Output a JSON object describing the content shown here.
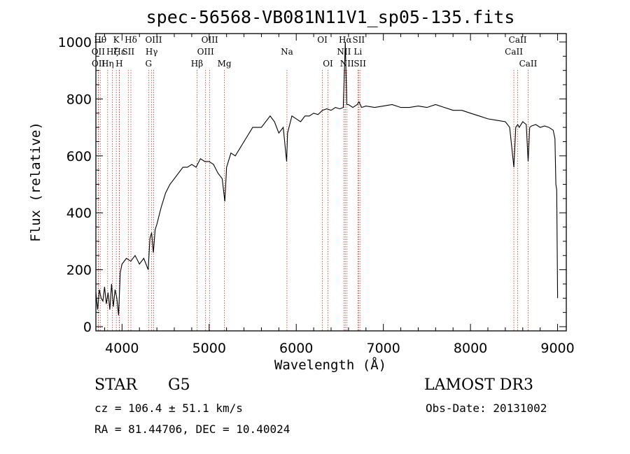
{
  "chart_data": {
    "type": "line",
    "title": "spec-56568-VB081N11V1_sp05-135.fits",
    "xlabel": "Wavelength (Å)",
    "ylabel": "Flux (relative)",
    "xlim": [
      3700,
      9100
    ],
    "ylim": [
      0,
      1000
    ],
    "xticks": [
      4000,
      5000,
      6000,
      7000,
      8000,
      9000
    ],
    "yticks": [
      0,
      200,
      400,
      600,
      800,
      1000
    ],
    "spectrum": {
      "x": [
        3700,
        3720,
        3740,
        3760,
        3780,
        3800,
        3820,
        3840,
        3860,
        3880,
        3900,
        3920,
        3940,
        3960,
        3980,
        4000,
        4050,
        4100,
        4150,
        4200,
        4250,
        4300,
        4320,
        4340,
        4360,
        4380,
        4400,
        4450,
        4500,
        4550,
        4600,
        4650,
        4700,
        4750,
        4800,
        4850,
        4900,
        4950,
        5000,
        5050,
        5100,
        5150,
        5180,
        5200,
        5250,
        5300,
        5400,
        5500,
        5600,
        5700,
        5750,
        5800,
        5850,
        5890,
        5900,
        5950,
        6000,
        6050,
        6100,
        6150,
        6200,
        6250,
        6300,
        6350,
        6400,
        6450,
        6500,
        6540,
        6563,
        6580,
        6600,
        6650,
        6700,
        6720,
        6750,
        6800,
        6900,
        7000,
        7100,
        7200,
        7300,
        7400,
        7500,
        7600,
        7700,
        7800,
        7900,
        8000,
        8100,
        8200,
        8300,
        8400,
        8450,
        8498,
        8520,
        8542,
        8560,
        8600,
        8640,
        8662,
        8680,
        8700,
        8750,
        8800,
        8850,
        8900,
        8950,
        8970,
        8980,
        8990,
        9000
      ],
      "y": [
        120,
        60,
        130,
        100,
        90,
        140,
        80,
        120,
        60,
        150,
        70,
        130,
        100,
        40,
        190,
        220,
        240,
        230,
        250,
        220,
        240,
        200,
        310,
        330,
        260,
        340,
        360,
        420,
        470,
        500,
        520,
        540,
        560,
        560,
        570,
        560,
        590,
        580,
        580,
        570,
        540,
        520,
        440,
        560,
        610,
        600,
        650,
        700,
        700,
        740,
        720,
        680,
        700,
        580,
        680,
        740,
        730,
        720,
        740,
        740,
        750,
        745,
        760,
        765,
        760,
        770,
        765,
        770,
        1000,
        780,
        780,
        770,
        780,
        790,
        770,
        775,
        770,
        775,
        780,
        770,
        770,
        775,
        770,
        780,
        770,
        760,
        760,
        750,
        740,
        730,
        725,
        720,
        700,
        560,
        700,
        710,
        700,
        720,
        710,
        580,
        700,
        705,
        710,
        700,
        705,
        700,
        690,
        660,
        500,
        480,
        100
      ]
    },
    "line_markers": [
      {
        "label": "Hθ",
        "x": 3750,
        "row": 0
      },
      {
        "label": "OII",
        "x": 3727,
        "row": 1
      },
      {
        "label": "OII",
        "x": 3729,
        "row": 2
      },
      {
        "label": "Hη",
        "x": 3835,
        "row": 2
      },
      {
        "label": "Hζ",
        "x": 3889,
        "row": 1
      },
      {
        "label": "K",
        "x": 3934,
        "row": 0
      },
      {
        "label": "Hε",
        "x": 3970,
        "row": 1
      },
      {
        "label": "H",
        "x": 3968,
        "row": 2
      },
      {
        "label": "SII",
        "x": 4072,
        "row": 1
      },
      {
        "label": "Hδ",
        "x": 4102,
        "row": 0
      },
      {
        "label": "OIII",
        "x": 4363,
        "row": 0
      },
      {
        "label": "Hγ",
        "x": 4340,
        "row": 1
      },
      {
        "label": "G",
        "x": 4305,
        "row": 2
      },
      {
        "label": "Hβ",
        "x": 4861,
        "row": 2
      },
      {
        "label": "OIII",
        "x": 5007,
        "row": 0
      },
      {
        "label": "OIII",
        "x": 4959,
        "row": 1
      },
      {
        "label": "Mg",
        "x": 5175,
        "row": 2
      },
      {
        "label": "Na",
        "x": 5893,
        "row": 1
      },
      {
        "label": "OI",
        "x": 6300,
        "row": 0
      },
      {
        "label": "OI",
        "x": 6364,
        "row": 2
      },
      {
        "label": "Hα",
        "x": 6563,
        "row": 0
      },
      {
        "label": "NII",
        "x": 6548,
        "row": 1
      },
      {
        "label": "NII",
        "x": 6583,
        "row": 2
      },
      {
        "label": "SII",
        "x": 6716,
        "row": 0
      },
      {
        "label": "Li",
        "x": 6708,
        "row": 1
      },
      {
        "label": "SII",
        "x": 6731,
        "row": 2
      },
      {
        "label": "CaII",
        "x": 8542,
        "row": 0
      },
      {
        "label": "CaII",
        "x": 8498,
        "row": 1
      },
      {
        "label": "CaII",
        "x": 8662,
        "row": 2
      }
    ]
  },
  "info": {
    "class": "STAR",
    "subclass": "G5",
    "survey": "LAMOST DR3",
    "cz": "cz = 106.4 ± 51.1 km/s",
    "obs_date": "Obs-Date: 20131002",
    "radec": "RA =  81.44706, DEC =  10.40024"
  }
}
